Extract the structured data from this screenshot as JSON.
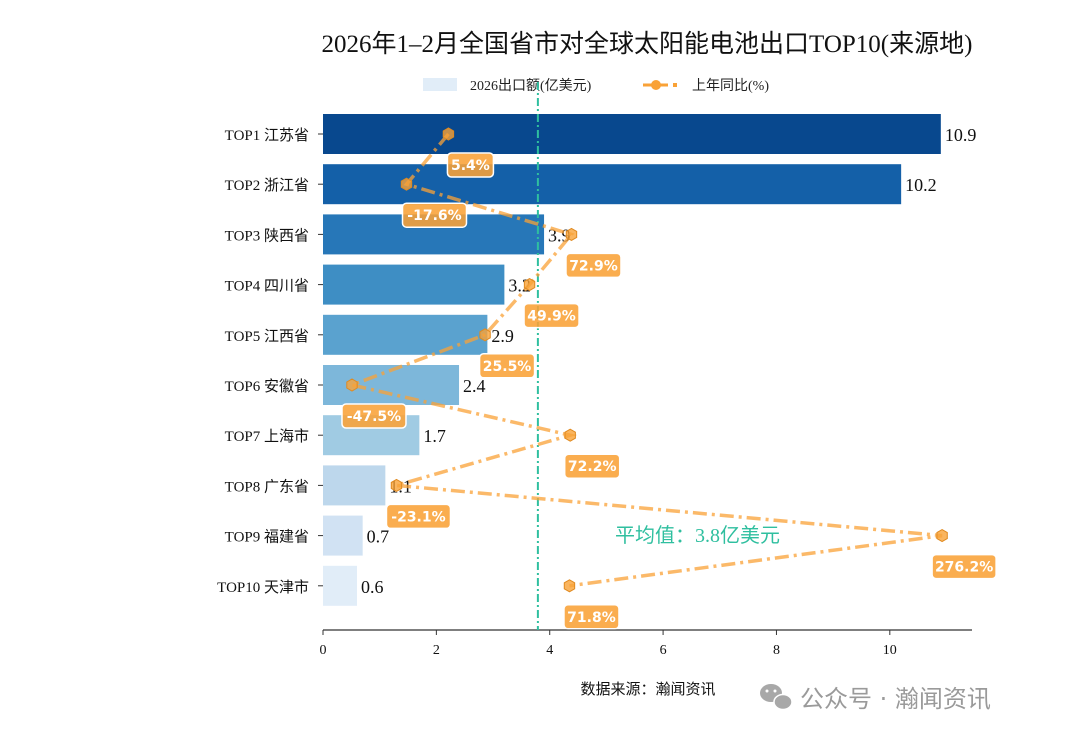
{
  "chart_data": {
    "type": "bar",
    "orientation": "horizontal",
    "title": "2026年1–2月全国省市对全球太阳能电池出口TOP10(来源地)",
    "categories": [
      "TOP1 江苏省",
      "TOP2 浙江省",
      "TOP3 陕西省",
      "TOP4 四川省",
      "TOP5 江西省",
      "TOP6 安徽省",
      "TOP7 上海市",
      "TOP8 广东省",
      "TOP9 福建省",
      "TOP10 天津市"
    ],
    "series": [
      {
        "name": "2026出口额(亿美元)",
        "type": "bar",
        "values": [
          10.9,
          10.2,
          3.9,
          3.2,
          2.9,
          2.4,
          1.7,
          1.1,
          0.7,
          0.6
        ],
        "colors": [
          "#08488e",
          "#1460a8",
          "#2777b8",
          "#3e8ec4",
          "#5aa2cf",
          "#7db7da",
          "#a0cbe3",
          "#bdd7ec",
          "#d1e2f3",
          "#e1edf8"
        ]
      },
      {
        "name": "上年同比(%)",
        "type": "line",
        "values": [
          5.4,
          -17.6,
          72.9,
          49.9,
          25.5,
          -47.5,
          72.2,
          -23.1,
          276.2,
          71.8
        ],
        "labels": [
          "5.4%",
          "-17.6%",
          "72.9%",
          "49.9%",
          "25.5%",
          "-47.5%",
          "72.2%",
          "-23.1%",
          "276.2%",
          "71.8%"
        ],
        "color": "#f9a237",
        "style": "dash-dot",
        "marker": "hexagon"
      }
    ],
    "bar_labels": [
      "10.9",
      "10.2",
      "3.9",
      "3.2",
      "2.9",
      "2.4",
      "1.7",
      "1.1",
      "0.7",
      "0.6"
    ],
    "xlim": [
      0,
      11.45
    ],
    "xticks": [
      0,
      2,
      4,
      6,
      8,
      10
    ],
    "xtick_labels": [
      "0",
      "2",
      "4",
      "6",
      "8",
      "10"
    ],
    "average": {
      "value": 3.8,
      "label": "平均值：3.8亿美元",
      "color": "#2fbf9f"
    },
    "legend_placement": "top-center",
    "grid": false,
    "xlabel": "",
    "ylabel": ""
  },
  "footer": {
    "source": "数据来源：瀚闻资讯",
    "watermark": "公众号 · 瀚闻资讯"
  }
}
